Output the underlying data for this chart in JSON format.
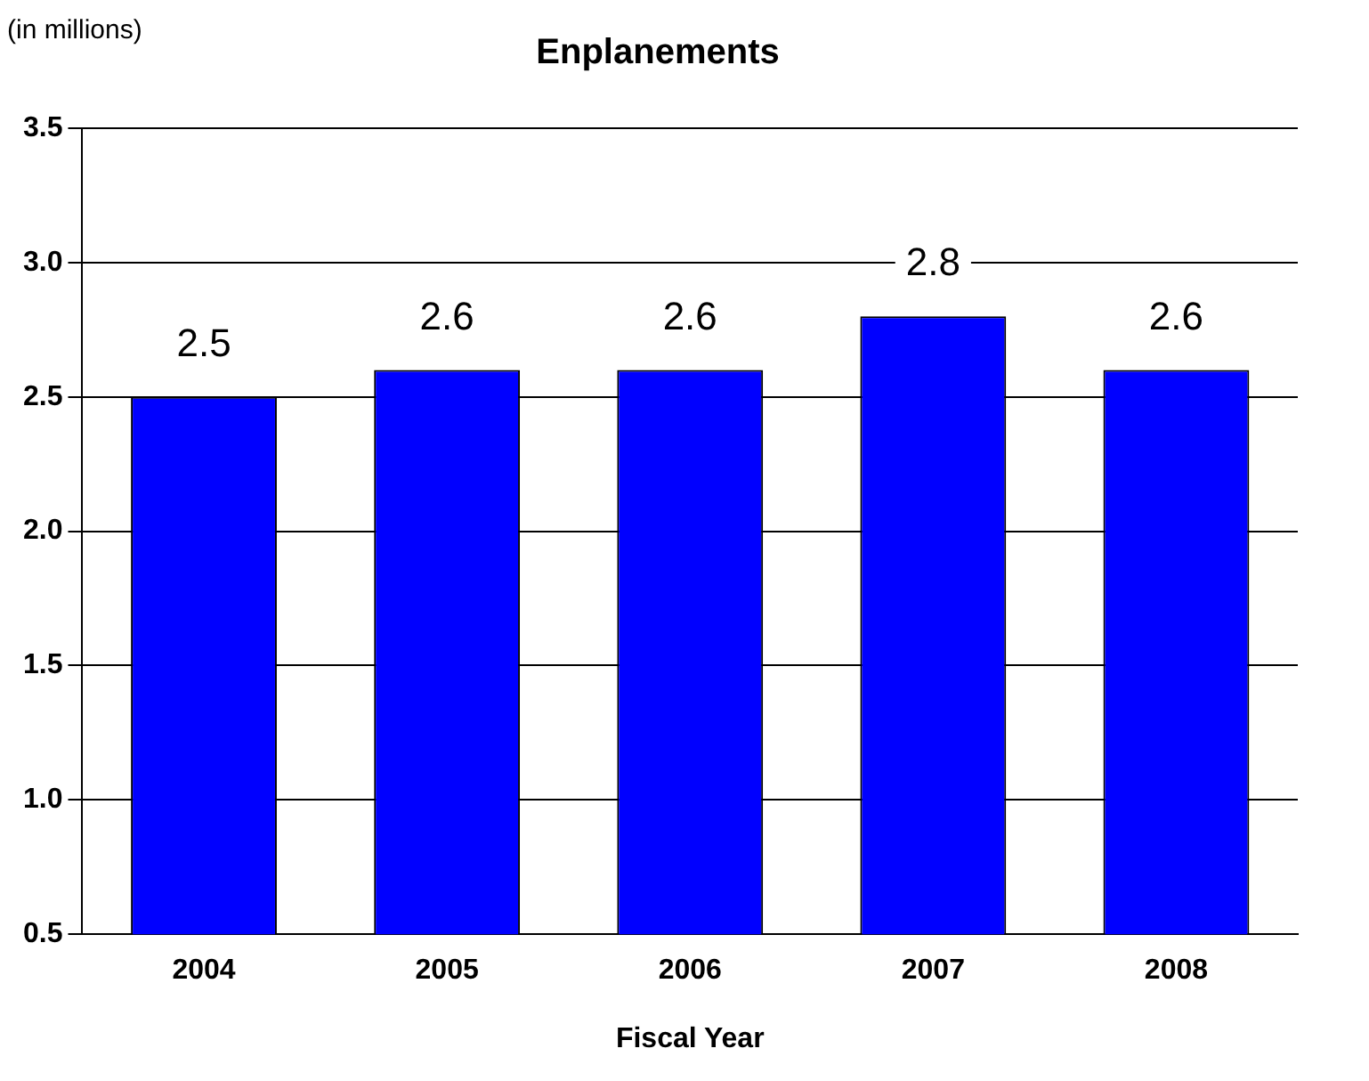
{
  "chart_data": {
    "type": "bar",
    "title": "Enplanements",
    "xlabel": "Fiscal Year",
    "ylabel": "(in millions)",
    "categories": [
      "2004",
      "2005",
      "2006",
      "2007",
      "2008"
    ],
    "values": [
      2.5,
      2.6,
      2.6,
      2.8,
      2.6
    ],
    "color": "#0000ff",
    "ylim": [
      0.5,
      3.5
    ],
    "yticks": [
      0.5,
      {
        "value": 1,
        "label": "1.0"
      },
      1.5,
      {
        "value": 2,
        "label": "2.0"
      },
      2.5,
      {
        "value": 3,
        "label": "3.0"
      },
      3.5
    ],
    "grid": "y",
    "legend": false,
    "data_labels": true
  }
}
